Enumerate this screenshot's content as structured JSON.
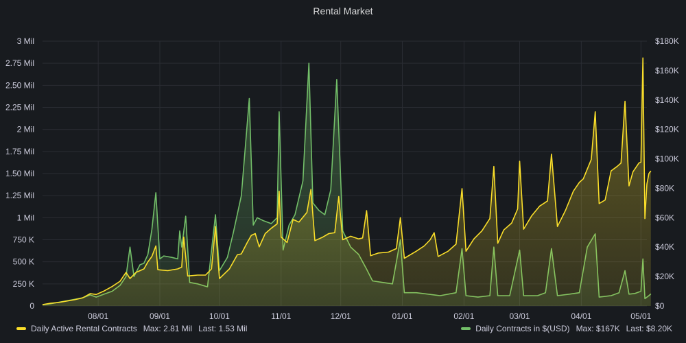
{
  "panel": {
    "title": "Rental Market"
  },
  "colors": {
    "background": "#181b1f",
    "grid": "#2a2d33",
    "contracts": "#fade2a",
    "usd": "#73bf69"
  },
  "legend": {
    "contracts": {
      "label": "Daily Active Rental Contracts",
      "max": "Max: 2.81 Mil",
      "last": "Last: 1.53 Mil"
    },
    "usd": {
      "label": "Daily Contracts in $(USD)",
      "max": "Max: $167K",
      "last": "Last: $8.20K"
    }
  },
  "chart_data": {
    "type": "line",
    "title": "Rental Market",
    "x_range": [
      "07/04",
      "05/04"
    ],
    "x_ticks": [
      {
        "date": "08/01",
        "label": "08/01"
      },
      {
        "date": "09/01",
        "label": "09/01"
      },
      {
        "date": "10/01",
        "label": "10/01"
      },
      {
        "date": "11/01",
        "label": "11/01"
      },
      {
        "date": "12/01",
        "label": "12/01"
      },
      {
        "date": "01/01",
        "label": "01/01"
      },
      {
        "date": "02/01",
        "label": "02/01"
      },
      {
        "date": "03/01",
        "label": "03/01"
      },
      {
        "date": "04/01",
        "label": "04/01"
      },
      {
        "date": "05/01",
        "label": "05/01"
      }
    ],
    "y_left": {
      "min": 0,
      "max": 3000000,
      "ticks": [
        {
          "v": 0,
          "label": "0"
        },
        {
          "v": 250000,
          "label": "250 K"
        },
        {
          "v": 500000,
          "label": "500 K"
        },
        {
          "v": 750000,
          "label": "750 K"
        },
        {
          "v": 1000000,
          "label": "1 Mil"
        },
        {
          "v": 1250000,
          "label": "1.25 Mil"
        },
        {
          "v": 1500000,
          "label": "1.50 Mil"
        },
        {
          "v": 1750000,
          "label": "1.75 Mil"
        },
        {
          "v": 2000000,
          "label": "2 Mil"
        },
        {
          "v": 2250000,
          "label": "2.25 Mil"
        },
        {
          "v": 2500000,
          "label": "2.50 Mil"
        },
        {
          "v": 2750000,
          "label": "2.75 Mil"
        },
        {
          "v": 3000000,
          "label": "3 Mil"
        }
      ]
    },
    "y_right": {
      "min": 0,
      "max": 180000,
      "ticks": [
        {
          "v": 0,
          "label": "$0"
        },
        {
          "v": 20000,
          "label": "$20K"
        },
        {
          "v": 40000,
          "label": "$40K"
        },
        {
          "v": 60000,
          "label": "$60K"
        },
        {
          "v": 80000,
          "label": "$80K"
        },
        {
          "v": 100000,
          "label": "$100K"
        },
        {
          "v": 120000,
          "label": "$120K"
        },
        {
          "v": 140000,
          "label": "$140K"
        },
        {
          "v": 160000,
          "label": "$160K"
        },
        {
          "v": 180000,
          "label": "$180K"
        }
      ]
    },
    "series": [
      {
        "name": "Daily Active Rental Contracts",
        "axis": "left",
        "color": "#fade2a",
        "points": [
          [
            "07/04",
            15000
          ],
          [
            "07/08",
            30000
          ],
          [
            "07/12",
            40000
          ],
          [
            "07/16",
            55000
          ],
          [
            "07/20",
            70000
          ],
          [
            "07/24",
            90000
          ],
          [
            "07/28",
            140000
          ],
          [
            "07/31",
            130000
          ],
          [
            "08/04",
            170000
          ],
          [
            "08/08",
            220000
          ],
          [
            "08/12",
            280000
          ],
          [
            "08/15",
            380000
          ],
          [
            "08/17",
            310000
          ],
          [
            "08/20",
            380000
          ],
          [
            "08/24",
            420000
          ],
          [
            "08/26",
            500000
          ],
          [
            "08/28",
            560000
          ],
          [
            "08/30",
            680000
          ],
          [
            "08/31",
            410000
          ],
          [
            "09/05",
            400000
          ],
          [
            "09/10",
            420000
          ],
          [
            "09/12",
            440000
          ],
          [
            "09/13",
            780000
          ],
          [
            "09/15",
            340000
          ],
          [
            "09/20",
            350000
          ],
          [
            "09/24",
            350000
          ],
          [
            "09/27",
            420000
          ],
          [
            "09/29",
            900000
          ],
          [
            "10/01",
            310000
          ],
          [
            "10/06",
            420000
          ],
          [
            "10/10",
            580000
          ],
          [
            "10/12",
            590000
          ],
          [
            "10/15",
            720000
          ],
          [
            "10/17",
            800000
          ],
          [
            "10/19",
            820000
          ],
          [
            "10/21",
            670000
          ],
          [
            "10/24",
            820000
          ],
          [
            "10/27",
            880000
          ],
          [
            "10/30",
            930000
          ],
          [
            "10/31",
            1300000
          ],
          [
            "11/01",
            780000
          ],
          [
            "11/04",
            720000
          ],
          [
            "11/07",
            980000
          ],
          [
            "11/10",
            950000
          ],
          [
            "11/14",
            1060000
          ],
          [
            "11/16",
            1320000
          ],
          [
            "11/18",
            740000
          ],
          [
            "11/22",
            780000
          ],
          [
            "11/25",
            820000
          ],
          [
            "11/28",
            830000
          ],
          [
            "11/30",
            1240000
          ],
          [
            "12/02",
            750000
          ],
          [
            "12/06",
            790000
          ],
          [
            "12/10",
            760000
          ],
          [
            "12/12",
            770000
          ],
          [
            "12/14",
            1080000
          ],
          [
            "12/16",
            570000
          ],
          [
            "12/20",
            600000
          ],
          [
            "12/25",
            610000
          ],
          [
            "12/29",
            650000
          ],
          [
            "12/31",
            1000000
          ],
          [
            "01/02",
            540000
          ],
          [
            "01/08",
            620000
          ],
          [
            "01/12",
            680000
          ],
          [
            "01/15",
            750000
          ],
          [
            "01/17",
            830000
          ],
          [
            "01/19",
            560000
          ],
          [
            "01/24",
            620000
          ],
          [
            "01/28",
            700000
          ],
          [
            "01/31",
            1330000
          ],
          [
            "02/02",
            620000
          ],
          [
            "02/06",
            760000
          ],
          [
            "02/10",
            850000
          ],
          [
            "02/14",
            990000
          ],
          [
            "02/16",
            1580000
          ],
          [
            "02/18",
            710000
          ],
          [
            "02/21",
            860000
          ],
          [
            "02/25",
            940000
          ],
          [
            "02/28",
            1100000
          ],
          [
            "03/01",
            1640000
          ],
          [
            "03/03",
            870000
          ],
          [
            "03/07",
            1020000
          ],
          [
            "03/11",
            1130000
          ],
          [
            "03/15",
            1190000
          ],
          [
            "03/17",
            1720000
          ],
          [
            "03/20",
            900000
          ],
          [
            "03/24",
            1080000
          ],
          [
            "03/28",
            1300000
          ],
          [
            "03/31",
            1400000
          ],
          [
            "04/02",
            1440000
          ],
          [
            "04/06",
            1660000
          ],
          [
            "04/08",
            2200000
          ],
          [
            "04/10",
            1160000
          ],
          [
            "04/13",
            1200000
          ],
          [
            "04/16",
            1530000
          ],
          [
            "04/19",
            1580000
          ],
          [
            "04/21",
            1620000
          ],
          [
            "04/23",
            2320000
          ],
          [
            "04/25",
            1360000
          ],
          [
            "04/27",
            1520000
          ],
          [
            "04/30",
            1620000
          ],
          [
            "05/01",
            1630000
          ],
          [
            "05/02",
            2810000
          ],
          [
            "05/03",
            990000
          ],
          [
            "05/04",
            1380000
          ],
          [
            "05/05",
            1500000
          ],
          [
            "05/06",
            1530000
          ]
        ]
      },
      {
        "name": "Daily Contracts in $(USD)",
        "axis": "right",
        "color": "#73bf69",
        "points": [
          [
            "07/04",
            800
          ],
          [
            "07/08",
            1500
          ],
          [
            "07/12",
            2500
          ],
          [
            "07/16",
            3500
          ],
          [
            "07/20",
            4500
          ],
          [
            "07/24",
            5500
          ],
          [
            "07/28",
            7500
          ],
          [
            "07/31",
            6000
          ],
          [
            "08/04",
            8000
          ],
          [
            "08/08",
            10000
          ],
          [
            "08/12",
            14000
          ],
          [
            "08/15",
            20000
          ],
          [
            "08/17",
            40000
          ],
          [
            "08/19",
            20000
          ],
          [
            "08/22",
            28000
          ],
          [
            "08/24",
            29000
          ],
          [
            "08/26",
            35000
          ],
          [
            "08/28",
            52000
          ],
          [
            "08/30",
            77000
          ],
          [
            "09/01",
            32000
          ],
          [
            "09/03",
            34000
          ],
          [
            "09/07",
            33000
          ],
          [
            "09/10",
            32000
          ],
          [
            "09/11",
            51000
          ],
          [
            "09/12",
            40000
          ],
          [
            "09/14",
            61000
          ],
          [
            "09/16",
            16000
          ],
          [
            "09/20",
            15000
          ],
          [
            "09/25",
            13000
          ],
          [
            "09/29",
            62000
          ],
          [
            "10/01",
            24000
          ],
          [
            "10/05",
            33000
          ],
          [
            "10/08",
            50000
          ],
          [
            "10/12",
            75000
          ],
          [
            "10/16",
            141000
          ],
          [
            "10/18",
            55000
          ],
          [
            "10/20",
            60000
          ],
          [
            "10/23",
            58000
          ],
          [
            "10/27",
            56000
          ],
          [
            "10/30",
            60000
          ],
          [
            "10/31",
            132000
          ],
          [
            "11/02",
            38000
          ],
          [
            "11/05",
            55000
          ],
          [
            "11/08",
            62000
          ],
          [
            "11/12",
            85000
          ],
          [
            "11/15",
            165000
          ],
          [
            "11/17",
            70000
          ],
          [
            "11/20",
            65000
          ],
          [
            "11/23",
            62000
          ],
          [
            "11/26",
            79000
          ],
          [
            "11/29",
            154000
          ],
          [
            "12/02",
            51000
          ],
          [
            "12/06",
            40000
          ],
          [
            "12/10",
            35000
          ],
          [
            "12/14",
            25000
          ],
          [
            "12/17",
            17000
          ],
          [
            "12/22",
            16000
          ],
          [
            "12/27",
            15000
          ],
          [
            "12/31",
            45000
          ],
          [
            "01/02",
            9000
          ],
          [
            "01/08",
            9000
          ],
          [
            "01/14",
            8000
          ],
          [
            "01/20",
            7000
          ],
          [
            "01/28",
            9000
          ],
          [
            "01/31",
            39000
          ],
          [
            "02/02",
            7000
          ],
          [
            "02/08",
            6000
          ],
          [
            "02/14",
            7000
          ],
          [
            "02/16",
            40000
          ],
          [
            "02/18",
            7000
          ],
          [
            "02/24",
            7000
          ],
          [
            "03/01",
            38000
          ],
          [
            "03/03",
            7000
          ],
          [
            "03/10",
            7000
          ],
          [
            "03/14",
            9000
          ],
          [
            "03/17",
            39000
          ],
          [
            "03/20",
            7000
          ],
          [
            "03/26",
            8000
          ],
          [
            "03/31",
            9000
          ],
          [
            "04/04",
            40000
          ],
          [
            "04/08",
            49000
          ],
          [
            "04/10",
            6000
          ],
          [
            "04/16",
            7000
          ],
          [
            "04/20",
            9000
          ],
          [
            "04/23",
            24000
          ],
          [
            "04/25",
            8000
          ],
          [
            "04/28",
            8500
          ],
          [
            "05/01",
            10000
          ],
          [
            "05/02",
            32000
          ],
          [
            "05/03",
            5000
          ],
          [
            "05/05",
            7000
          ],
          [
            "05/06",
            8200
          ]
        ]
      }
    ]
  }
}
